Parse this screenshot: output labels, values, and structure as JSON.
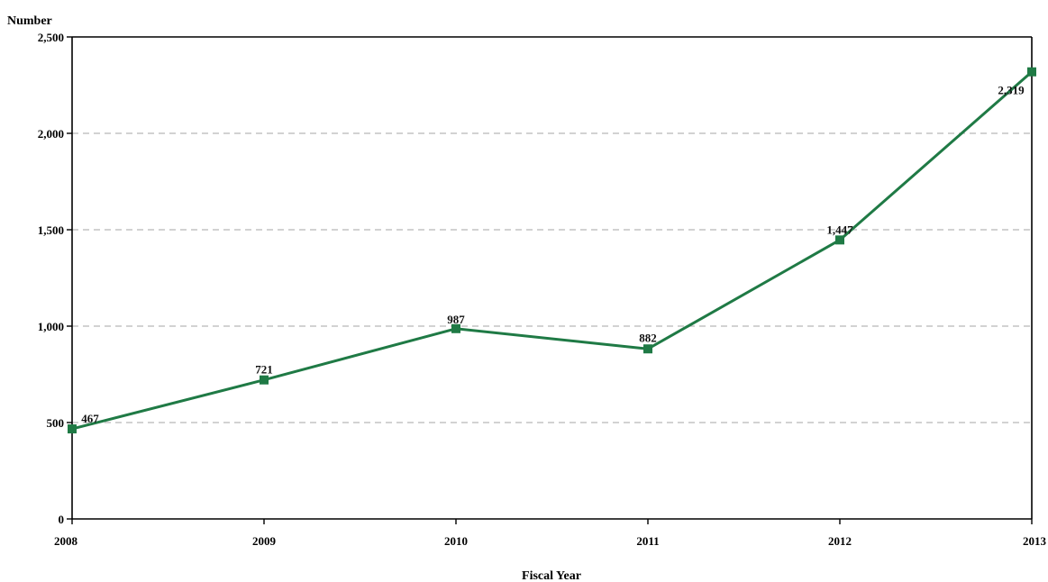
{
  "page_title": {
    "text": "",
    "accent_text": ""
  },
  "chart_data": {
    "type": "line",
    "title": "",
    "xlabel": "Fiscal Year",
    "ylabel": "Number",
    "x": [
      "2008",
      "2009",
      "2010",
      "2011",
      "2012",
      "2013"
    ],
    "series": [
      {
        "name": "",
        "values": [
          467,
          721,
          987,
          882,
          1447,
          2319
        ],
        "labels": [
          "467",
          "721",
          "987",
          "882",
          "1,447",
          "2,319"
        ],
        "color": "#1f7a45",
        "marker": "square"
      }
    ],
    "ylim": [
      0,
      2500
    ],
    "yticks": [
      0,
      500,
      1000,
      1500,
      2000,
      2500
    ],
    "ytick_labels": [
      "0",
      "500",
      "1,000",
      "1,500",
      "2,000",
      "2,500"
    ],
    "grid": "horizontal-dashed",
    "legend": "none"
  }
}
